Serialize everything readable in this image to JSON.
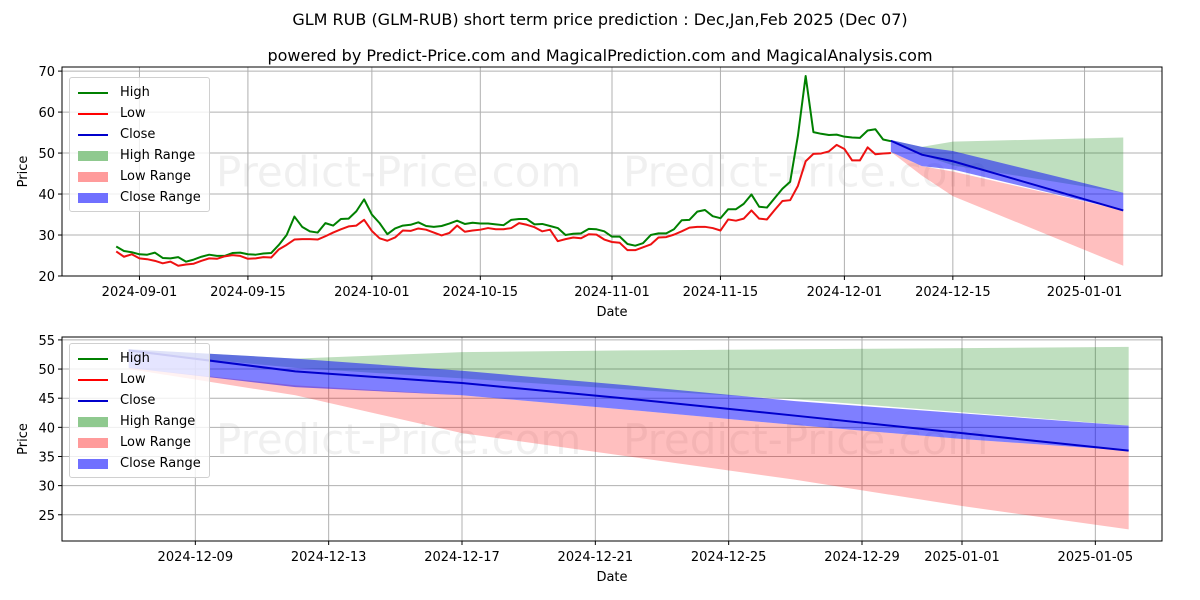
{
  "header": {
    "title": "GLM RUB (GLM-RUB) short term price prediction : Dec,Jan,Feb 2025 (Dec 07)",
    "subtitle": "powered by Predict-Price.com and MagicalPrediction.com and MagicalAnalysis.com"
  },
  "watermark": "Predict-Price.com",
  "legend": {
    "items": [
      {
        "label": "High",
        "type": "line",
        "color": "#008000"
      },
      {
        "label": "Low",
        "type": "line",
        "color": "#ff0000"
      },
      {
        "label": "Close",
        "type": "line",
        "color": "#0000cc"
      },
      {
        "label": "High Range",
        "type": "fill",
        "color": "#8fc98f"
      },
      {
        "label": "Low Range",
        "type": "fill",
        "color": "#ff9b9b"
      },
      {
        "label": "Close Range",
        "type": "fill",
        "color": "#7070ff"
      }
    ]
  },
  "colors": {
    "high": "#008000",
    "low": "#ee1111",
    "close": "#0000cc",
    "high_range": "rgba(0,128,0,0.25)",
    "low_range": "rgba(255,0,0,0.25)",
    "close_range": "rgba(0,0,255,0.5)",
    "grid": "#b0b0b0"
  },
  "chart_data": [
    {
      "type": "line",
      "title": "GLM RUB (GLM-RUB) short term price prediction : Dec,Jan,Feb 2025 (Dec 07)",
      "xlabel": "Date",
      "ylabel": "Price",
      "ylim": [
        20,
        71
      ],
      "yticks": [
        20,
        30,
        40,
        50,
        60,
        70
      ],
      "xticks": [
        "2024-09-01",
        "2024-09-15",
        "2024-10-01",
        "2024-10-15",
        "2024-11-01",
        "2024-11-15",
        "2024-12-01",
        "2024-12-15",
        "2025-01-01"
      ],
      "grid": true,
      "legend_position": "upper left",
      "history": {
        "x": [
          "2024-08-29",
          "2024-08-30",
          "2024-08-31",
          "2024-09-01",
          "2024-09-02",
          "2024-09-03",
          "2024-09-04",
          "2024-09-05",
          "2024-09-06",
          "2024-09-07",
          "2024-09-08",
          "2024-09-09",
          "2024-09-10",
          "2024-09-11",
          "2024-09-12",
          "2024-09-13",
          "2024-09-14",
          "2024-09-15",
          "2024-09-16",
          "2024-09-17",
          "2024-09-18",
          "2024-09-19",
          "2024-09-20",
          "2024-09-21",
          "2024-09-22",
          "2024-09-23",
          "2024-09-24",
          "2024-09-25",
          "2024-09-26",
          "2024-09-27",
          "2024-09-28",
          "2024-09-29",
          "2024-09-30",
          "2024-10-01",
          "2024-10-02",
          "2024-10-03",
          "2024-10-04",
          "2024-10-05",
          "2024-10-06",
          "2024-10-07",
          "2024-10-08",
          "2024-10-09",
          "2024-10-10",
          "2024-10-11",
          "2024-10-12",
          "2024-10-13",
          "2024-10-14",
          "2024-10-15",
          "2024-10-16",
          "2024-10-17",
          "2024-10-18",
          "2024-10-19",
          "2024-10-20",
          "2024-10-21",
          "2024-10-22",
          "2024-10-23",
          "2024-10-24",
          "2024-10-25",
          "2024-10-26",
          "2024-10-27",
          "2024-10-28",
          "2024-10-29",
          "2024-10-30",
          "2024-10-31",
          "2024-11-01",
          "2024-11-02",
          "2024-11-03",
          "2024-11-04",
          "2024-11-05",
          "2024-11-06",
          "2024-11-07",
          "2024-11-08",
          "2024-11-09",
          "2024-11-10",
          "2024-11-11",
          "2024-11-12",
          "2024-11-13",
          "2024-11-14",
          "2024-11-15",
          "2024-11-16",
          "2024-11-17",
          "2024-11-18",
          "2024-11-19",
          "2024-11-20",
          "2024-11-21",
          "2024-11-22",
          "2024-11-23",
          "2024-11-24",
          "2024-11-25",
          "2024-11-26",
          "2024-11-27",
          "2024-11-28",
          "2024-11-29",
          "2024-11-30",
          "2024-12-01",
          "2024-12-02",
          "2024-12-03",
          "2024-12-04",
          "2024-12-05",
          "2024-12-06",
          "2024-12-07"
        ],
        "high": [
          27.2,
          26.1,
          25.8,
          25.3,
          25.2,
          25.7,
          24.4,
          24.3,
          24.6,
          23.5,
          24.0,
          24.7,
          25.2,
          24.9,
          24.9,
          25.6,
          25.7,
          25.3,
          25.2,
          25.5,
          25.6,
          27.6,
          30.0,
          34.5,
          32.0,
          30.9,
          30.6,
          32.9,
          32.3,
          33.9,
          34.0,
          35.8,
          38.7,
          35.0,
          32.9,
          30.2,
          31.6,
          32.3,
          32.5,
          33.1,
          32.2,
          32.0,
          32.2,
          32.8,
          33.5,
          32.7,
          33.0,
          32.8,
          32.8,
          32.6,
          32.4,
          33.7,
          33.9,
          33.9,
          32.6,
          32.7,
          32.2,
          31.7,
          30.0,
          30.3,
          30.4,
          31.5,
          31.4,
          30.9,
          29.6,
          29.6,
          27.8,
          27.4,
          28.0,
          30.0,
          30.4,
          30.4,
          31.4,
          33.6,
          33.7,
          35.7,
          36.1,
          34.6,
          34.1,
          36.3,
          36.3,
          37.6,
          39.9,
          36.9,
          36.7,
          39.0,
          41.3,
          43.0,
          54.2,
          68.8,
          55.1,
          54.7,
          54.4,
          54.5,
          54.0,
          53.8,
          53.7,
          55.5,
          55.8,
          53.3,
          52.9
        ],
        "low": [
          26.0,
          24.7,
          25.3,
          24.3,
          24.1,
          23.7,
          23.1,
          23.5,
          22.5,
          22.8,
          23.0,
          23.7,
          24.3,
          24.2,
          24.8,
          25.1,
          24.9,
          24.2,
          24.3,
          24.6,
          24.5,
          26.5,
          27.6,
          28.9,
          29.0,
          29.0,
          28.9,
          29.7,
          30.6,
          31.4,
          32.1,
          32.3,
          33.7,
          31.0,
          29.2,
          28.6,
          29.4,
          31.1,
          31.0,
          31.6,
          31.3,
          30.6,
          29.9,
          30.5,
          32.3,
          30.8,
          31.1,
          31.3,
          31.7,
          31.4,
          31.4,
          31.7,
          32.9,
          32.5,
          31.9,
          30.9,
          31.3,
          28.5,
          29.0,
          29.4,
          29.2,
          30.2,
          30.1,
          28.9,
          28.3,
          28.1,
          26.3,
          26.3,
          27.0,
          27.7,
          29.4,
          29.5,
          30.1,
          30.9,
          31.8,
          32.0,
          32.0,
          31.7,
          31.1,
          33.8,
          33.5,
          34.0,
          36.0,
          34.0,
          33.8,
          36.1,
          38.3,
          38.5,
          42.0,
          48.0,
          49.8,
          49.9,
          50.4,
          52.0,
          51.0,
          48.2,
          48.2,
          51.4,
          49.7,
          49.9,
          50.0
        ]
      },
      "forecast": {
        "x": [
          "2024-12-07",
          "2024-12-11",
          "2024-12-15",
          "2025-01-06"
        ],
        "close": [
          53.0,
          49.6,
          48.0,
          36.0
        ],
        "high_range_upper": [
          53.2,
          51.5,
          52.8,
          53.8
        ],
        "high_range_lower": [
          52.9,
          49.6,
          47.0,
          40.3
        ],
        "low_range_upper": [
          50.3,
          46.8,
          45.5,
          36.0
        ],
        "low_range_lower": [
          50.3,
          44.5,
          39.5,
          22.5
        ],
        "close_range_upper": [
          53.2,
          51.5,
          50.5,
          40.3
        ],
        "close_range_lower": [
          50.3,
          46.8,
          46.0,
          36.0
        ]
      }
    },
    {
      "type": "line",
      "title": "",
      "xlabel": "Date",
      "ylabel": "Price",
      "ylim": [
        20.5,
        55.5
      ],
      "yticks": [
        25,
        30,
        35,
        40,
        45,
        50,
        55
      ],
      "xticks": [
        "2024-12-09",
        "2024-12-13",
        "2024-12-17",
        "2024-12-21",
        "2024-12-25",
        "2024-12-29",
        "2025-01-01",
        "2025-01-05"
      ],
      "grid": true,
      "legend_position": "upper left",
      "forecast": {
        "x": [
          "2024-12-07",
          "2024-12-12",
          "2024-12-17",
          "2024-12-22",
          "2024-12-27",
          "2025-01-01",
          "2025-01-06"
        ],
        "close": [
          53.2,
          49.6,
          47.6,
          44.9,
          42.0,
          39.0,
          36.0
        ],
        "high_range_upper": [
          53.4,
          51.8,
          52.9,
          53.2,
          53.4,
          53.6,
          53.8
        ],
        "high_range_lower": [
          52.9,
          50.2,
          48.4,
          46.5,
          44.8,
          42.6,
          40.3
        ],
        "low_range_upper": [
          50.2,
          47.2,
          45.5,
          43.0,
          40.4,
          38.0,
          36.0
        ],
        "low_range_lower": [
          50.0,
          45.5,
          39.0,
          35.0,
          31.0,
          26.5,
          22.5
        ],
        "close_range_upper": [
          53.4,
          51.8,
          49.7,
          47.2,
          44.5,
          42.4,
          40.3
        ],
        "close_range_lower": [
          50.2,
          46.9,
          45.5,
          43.0,
          40.4,
          38.0,
          36.0
        ]
      }
    }
  ]
}
